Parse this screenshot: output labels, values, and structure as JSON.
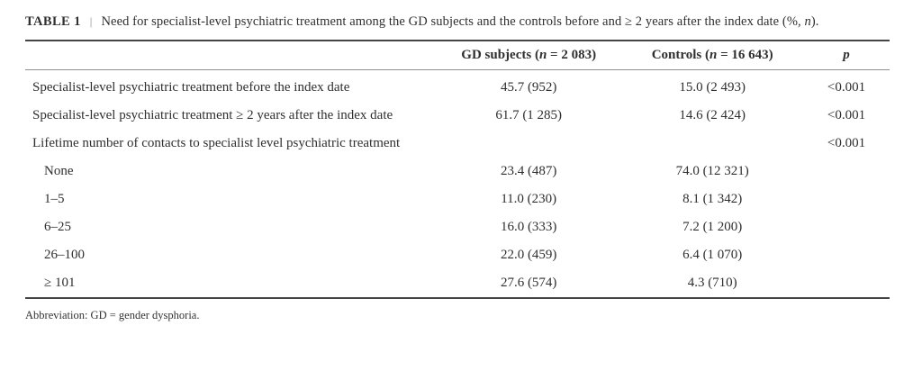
{
  "caption": {
    "label": "TABLE 1",
    "separator": "|",
    "text_before_italic": "Need for specialist-level psychiatric treatment among the GD subjects and the controls before and ≥ 2 years after the index date (%, ",
    "italic_n": "n",
    "text_after_italic": ")."
  },
  "table": {
    "headers": {
      "gd": {
        "before": "GD subjects (",
        "italic": "n",
        "after": " = 2 083)"
      },
      "controls": {
        "before": "Controls (",
        "italic": "n",
        "after": " = 16 643)"
      },
      "p": "p"
    },
    "rows": [
      {
        "label": "Specialist-level psychiatric treatment before the index date",
        "gd": "45.7 (952)",
        "controls": "15.0 (2 493)",
        "p": "<0.001"
      },
      {
        "label": "Specialist-level psychiatric treatment ≥ 2 years after the index date",
        "gd": "61.7 (1 285)",
        "controls": "14.6 (2 424)",
        "p": "<0.001"
      },
      {
        "label": "Lifetime number of contacts to specialist level psychiatric treatment",
        "gd": "",
        "controls": "",
        "p": "<0.001"
      },
      {
        "label": "None",
        "gd": "23.4 (487)",
        "controls": "74.0 (12 321)",
        "p": ""
      },
      {
        "label": "1–5",
        "gd": "11.0 (230)",
        "controls": "8.1 (1 342)",
        "p": ""
      },
      {
        "label": "6–25",
        "gd": "16.0 (333)",
        "controls": "7.2 (1 200)",
        "p": ""
      },
      {
        "label": "26–100",
        "gd": "22.0 (459)",
        "controls": "6.4 (1 070)",
        "p": ""
      },
      {
        "label": "≥ 101",
        "gd": "27.6 (574)",
        "controls": "4.3 (710)",
        "p": ""
      }
    ]
  },
  "footnote": "Abbreviation: GD = gender dysphoria.",
  "colors": {
    "text": "#2f2f2f",
    "rule_heavy": "#454545",
    "rule_light": "#8f8f8f",
    "background": "#ffffff"
  }
}
